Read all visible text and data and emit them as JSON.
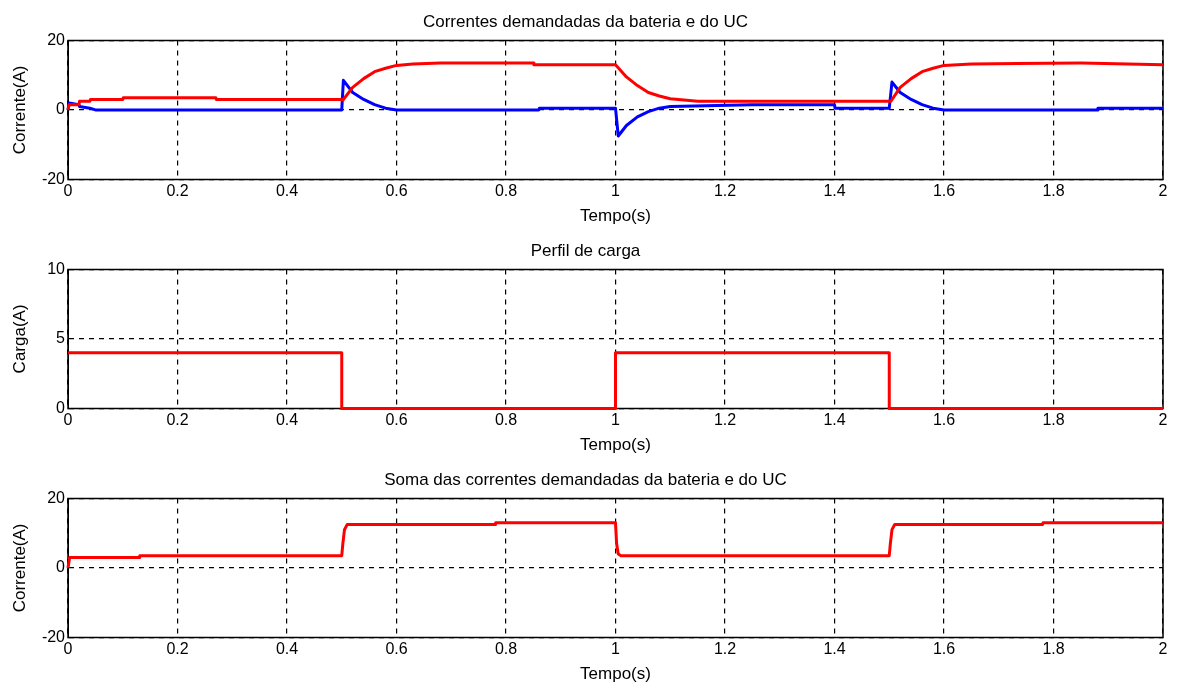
{
  "chart_data": [
    {
      "type": "line",
      "title": "Correntes demandadas da bateria e do UC",
      "xlabel": "Tempo(s)",
      "ylabel": "Corrente(A)",
      "xlim": [
        0,
        2
      ],
      "xticks": [
        0,
        0.2,
        0.4,
        0.6,
        0.8,
        1,
        1.2,
        1.4,
        1.6,
        1.8,
        2
      ],
      "ylim": [
        -20,
        20
      ],
      "yticks": [
        -20,
        0,
        20
      ],
      "grid": true,
      "marker": "none",
      "line_style": "solid",
      "series": [
        {
          "color": "#ff0000",
          "x": [
            0,
            0.002,
            0.02,
            0.021,
            0.04,
            0.041,
            0.1,
            0.101,
            0.27,
            0.271,
            0.5,
            0.503,
            0.52,
            0.54,
            0.56,
            0.58,
            0.6,
            0.63,
            0.68,
            0.85,
            0.851,
            1.0,
            1.02,
            1.04,
            1.06,
            1.08,
            1.1,
            1.15,
            1.4,
            1.401,
            1.5,
            1.503,
            1.52,
            1.54,
            1.56,
            1.58,
            1.6,
            1.65,
            1.85,
            1.851,
            2
          ],
          "values": [
            0,
            1.5,
            1.5,
            2.5,
            2.5,
            3,
            3,
            3.5,
            3.5,
            3,
            3,
            3,
            6.5,
            9,
            11,
            12,
            12.8,
            13.2,
            13.5,
            13.5,
            13,
            13,
            9.5,
            7,
            5,
            4,
            3.2,
            2.5,
            2.5,
            2.5,
            2.5,
            2.5,
            6.5,
            9,
            11,
            12,
            12.8,
            13.2,
            13.5,
            13.5,
            13
          ]
        },
        {
          "color": "#0000ff",
          "x": [
            0,
            0.002,
            0.02,
            0.021,
            0.04,
            0.05,
            0.5,
            0.503,
            0.52,
            0.54,
            0.56,
            0.58,
            0.6,
            0.86,
            0.861,
            1.0,
            1.005,
            1.02,
            1.04,
            1.06,
            1.08,
            1.1,
            1.25,
            1.4,
            1.401,
            1.5,
            1.505,
            1.52,
            1.54,
            1.56,
            1.58,
            1.6,
            1.88,
            1.881,
            2
          ],
          "values": [
            0,
            2,
            1.5,
            1,
            0.5,
            0,
            0,
            8.5,
            5,
            3,
            1.5,
            0.5,
            0,
            0,
            0.5,
            0.5,
            -7.5,
            -4.5,
            -2,
            -0.5,
            0.5,
            1,
            1.5,
            1.5,
            0.5,
            0.5,
            8,
            5,
            3,
            1.5,
            0.5,
            0,
            0,
            0.5,
            0.5
          ]
        }
      ]
    },
    {
      "type": "line",
      "title": "Perfil de carga",
      "xlabel": "Tempo(s)",
      "ylabel": "Carga(A)",
      "xlim": [
        0,
        2
      ],
      "xticks": [
        0,
        0.2,
        0.4,
        0.6,
        0.8,
        1,
        1.2,
        1.4,
        1.6,
        1.8,
        2
      ],
      "ylim": [
        0,
        10
      ],
      "yticks": [
        0,
        5,
        10
      ],
      "grid": true,
      "marker": "none",
      "line_style": "solid",
      "series": [
        {
          "color": "#ff0000",
          "x": [
            0,
            0.5,
            0.5,
            1,
            1,
            1.5,
            1.5,
            2
          ],
          "values": [
            4,
            4,
            0,
            0,
            4,
            4,
            0,
            0
          ]
        }
      ]
    },
    {
      "type": "line",
      "title": "Soma das correntes demandadas da bateria e do UC",
      "xlabel": "Tempo(s)",
      "ylabel": "Corrente(A)",
      "xlim": [
        0,
        2
      ],
      "xticks": [
        0,
        0.2,
        0.4,
        0.6,
        0.8,
        1,
        1.2,
        1.4,
        1.6,
        1.8,
        2
      ],
      "ylim": [
        -20,
        20
      ],
      "yticks": [
        -20,
        0,
        20
      ],
      "grid": true,
      "marker": "none",
      "line_style": "solid",
      "series": [
        {
          "color": "#ff0000",
          "x": [
            0,
            0.003,
            0.13,
            0.131,
            0.5,
            0.502,
            0.505,
            0.51,
            0.78,
            0.781,
            1.0,
            1.002,
            1.005,
            1.01,
            1.5,
            1.502,
            1.505,
            1.51,
            1.78,
            1.781,
            2
          ],
          "values": [
            0,
            3,
            3,
            3.5,
            3.5,
            7,
            11,
            12.5,
            12.5,
            13,
            13,
            7,
            4,
            3.5,
            3.5,
            7,
            11,
            12.5,
            12.5,
            13,
            13
          ]
        }
      ]
    }
  ]
}
